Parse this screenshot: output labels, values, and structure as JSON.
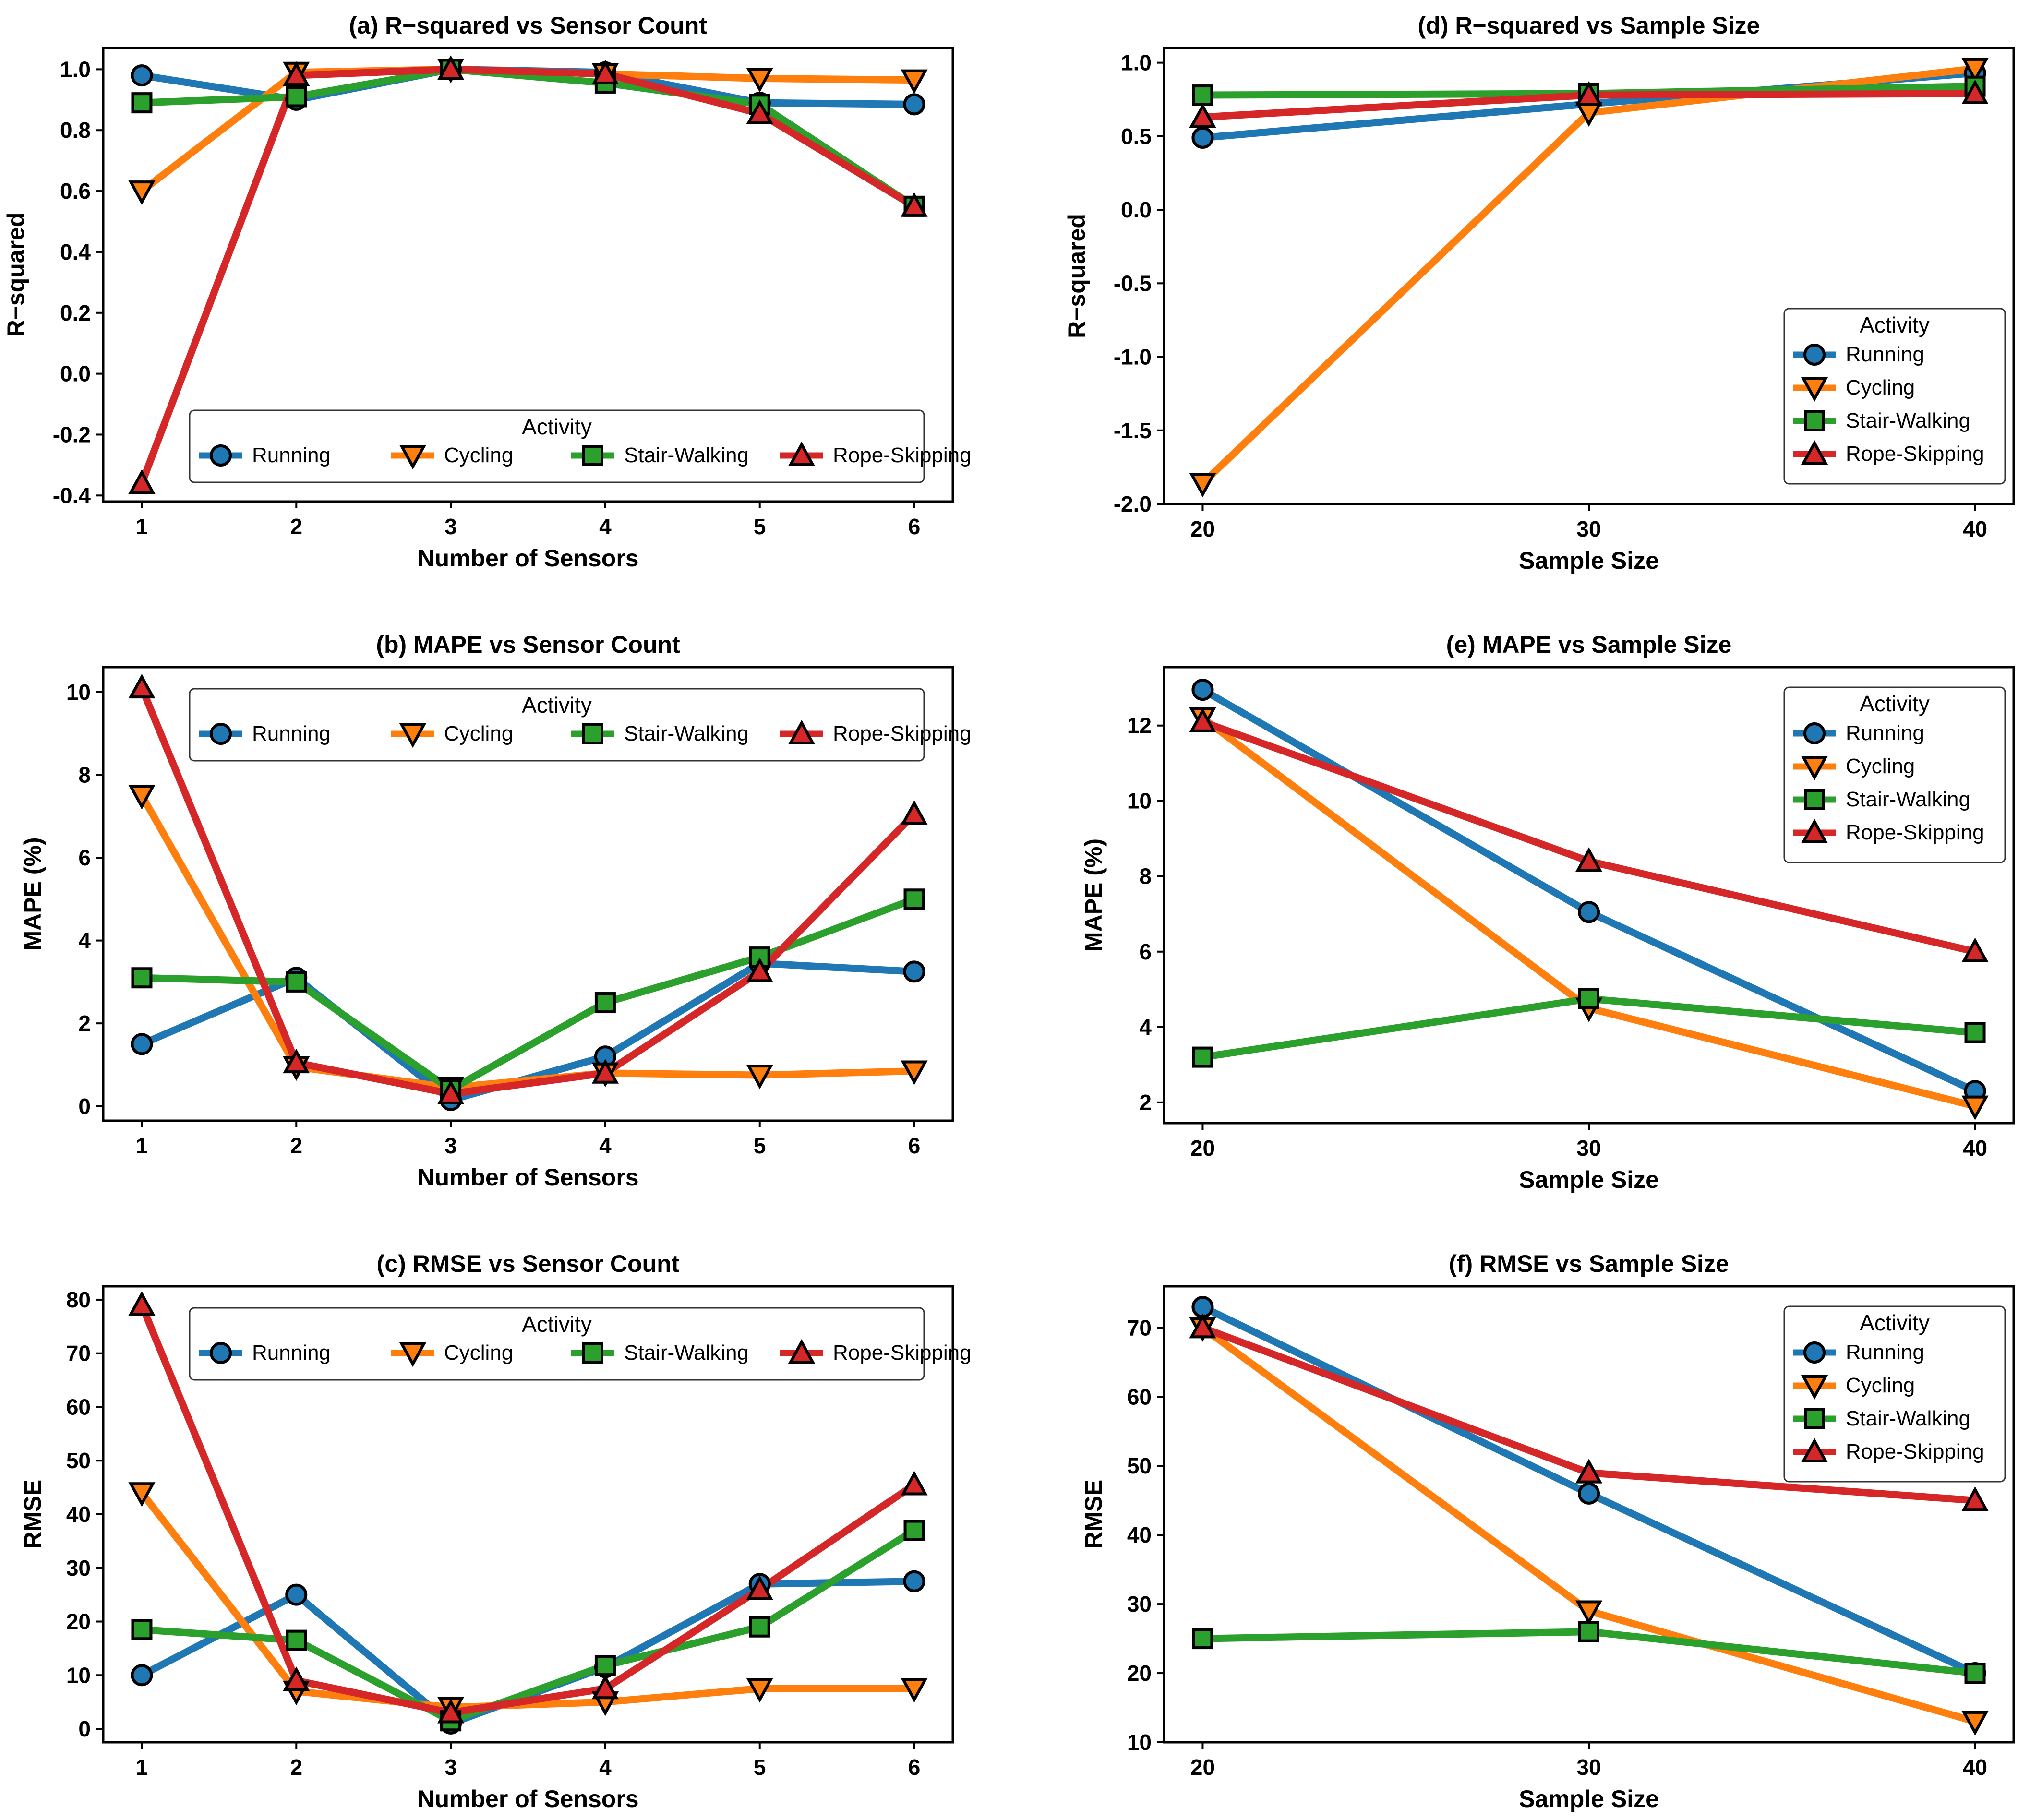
{
  "legend_title": "Activity",
  "colors": {
    "Running": "#1f77b4",
    "Cycling": "#ff7f0e",
    "Stair-Walking": "#2ca02c",
    "Rope-Skipping": "#d62728"
  },
  "chart_data": [
    {
      "id": "a",
      "type": "line",
      "title": "(a) R−squared vs Sensor Count",
      "xlabel": "Number of Sensors",
      "ylabel": "R−squared",
      "x": [
        1,
        2,
        3,
        4,
        5,
        6
      ],
      "xlim": [
        0.75,
        6.25
      ],
      "ylim": [
        -0.42,
        1.07
      ],
      "yticks": [
        -0.4,
        -0.2,
        0.0,
        0.2,
        0.4,
        0.6,
        0.8,
        1.0
      ],
      "ytick_labels": [
        "-0.4",
        "-0.2",
        "0.0",
        "0.2",
        "0.4",
        "0.6",
        "0.8",
        "1.0"
      ],
      "legend": "lower-center-horizontal",
      "series": [
        {
          "name": "Running",
          "marker": "circle",
          "values": [
            0.98,
            0.9,
            1.0,
            0.99,
            0.89,
            0.885
          ]
        },
        {
          "name": "Cycling",
          "marker": "triangle-down",
          "values": [
            0.6,
            0.99,
            1.0,
            0.985,
            0.97,
            0.965
          ]
        },
        {
          "name": "Stair-Walking",
          "marker": "square",
          "values": [
            0.89,
            0.91,
            1.0,
            0.955,
            0.885,
            0.55
          ]
        },
        {
          "name": "Rope-Skipping",
          "marker": "triangle-up",
          "values": [
            -0.36,
            0.98,
            1.0,
            0.985,
            0.855,
            0.55
          ]
        }
      ]
    },
    {
      "id": "b",
      "type": "line",
      "title": "(b) MAPE vs Sensor Count",
      "xlabel": "Number of Sensors",
      "ylabel": "MAPE (%)",
      "x": [
        1,
        2,
        3,
        4,
        5,
        6
      ],
      "xlim": [
        0.75,
        6.25
      ],
      "ylim": [
        -0.35,
        10.6
      ],
      "yticks": [
        0,
        2,
        4,
        6,
        8,
        10
      ],
      "ytick_labels": [
        "0",
        "2",
        "4",
        "6",
        "8",
        "10"
      ],
      "legend": "upper-center-horizontal",
      "series": [
        {
          "name": "Running",
          "marker": "circle",
          "values": [
            1.5,
            3.1,
            0.15,
            1.2,
            3.45,
            3.25
          ]
        },
        {
          "name": "Cycling",
          "marker": "triangle-down",
          "values": [
            7.5,
            0.95,
            0.45,
            0.8,
            0.75,
            0.85
          ]
        },
        {
          "name": "Stair-Walking",
          "marker": "square",
          "values": [
            3.1,
            3.0,
            0.4,
            2.5,
            3.6,
            5.0
          ]
        },
        {
          "name": "Rope-Skipping",
          "marker": "triangle-up",
          "values": [
            10.1,
            1.05,
            0.3,
            0.8,
            3.25,
            7.05
          ]
        }
      ]
    },
    {
      "id": "c",
      "type": "line",
      "title": "(c) RMSE vs Sensor Count",
      "xlabel": "Number of Sensors",
      "ylabel": "RMSE",
      "x": [
        1,
        2,
        3,
        4,
        5,
        6
      ],
      "xlim": [
        0.75,
        6.25
      ],
      "ylim": [
        -2.5,
        82.5
      ],
      "yticks": [
        0,
        10,
        20,
        30,
        40,
        50,
        60,
        70,
        80
      ],
      "ytick_labels": [
        "0",
        "10",
        "20",
        "30",
        "40",
        "50",
        "60",
        "70",
        "80"
      ],
      "legend": "upper-center-horizontal",
      "series": [
        {
          "name": "Running",
          "marker": "circle",
          "values": [
            10.0,
            25.0,
            1.0,
            11.5,
            27.0,
            27.5
          ]
        },
        {
          "name": "Cycling",
          "marker": "triangle-down",
          "values": [
            44.0,
            7.0,
            4.0,
            5.0,
            7.5,
            7.5
          ]
        },
        {
          "name": "Stair-Walking",
          "marker": "square",
          "values": [
            18.5,
            16.5,
            1.5,
            11.8,
            19.0,
            37.0
          ]
        },
        {
          "name": "Rope-Skipping",
          "marker": "triangle-up",
          "values": [
            79.0,
            9.0,
            3.0,
            7.5,
            26.0,
            45.5
          ]
        }
      ]
    },
    {
      "id": "d",
      "type": "line",
      "title": "(d) R−squared vs Sample Size",
      "xlabel": "Sample Size",
      "ylabel": "R−squared",
      "x": [
        20,
        30,
        40
      ],
      "xlim": [
        19.0,
        41.0
      ],
      "ylim": [
        -2.0,
        1.1
      ],
      "yticks": [
        -2.0,
        -1.5,
        -1.0,
        -0.5,
        0.0,
        0.5,
        1.0
      ],
      "ytick_labels": [
        "-2.0",
        "-1.5",
        "-1.0",
        "-0.5",
        "0.0",
        "0.5",
        "1.0"
      ],
      "legend": "lower-right",
      "series": [
        {
          "name": "Running",
          "marker": "circle",
          "values": [
            0.49,
            0.72,
            0.93
          ]
        },
        {
          "name": "Cycling",
          "marker": "triangle-down",
          "values": [
            -1.86,
            0.66,
            0.96
          ]
        },
        {
          "name": "Stair-Walking",
          "marker": "square",
          "values": [
            0.78,
            0.79,
            0.84
          ]
        },
        {
          "name": "Rope-Skipping",
          "marker": "triangle-up",
          "values": [
            0.63,
            0.78,
            0.79
          ]
        }
      ]
    },
    {
      "id": "e",
      "type": "line",
      "title": "(e) MAPE vs Sample Size",
      "xlabel": "Sample Size",
      "ylabel": "MAPE (%)",
      "x": [
        20,
        30,
        40
      ],
      "xlim": [
        19.0,
        41.0
      ],
      "ylim": [
        1.45,
        13.55
      ],
      "yticks": [
        2,
        4,
        6,
        8,
        10,
        12
      ],
      "ytick_labels": [
        "2",
        "4",
        "6",
        "8",
        "10",
        "12"
      ],
      "legend": "upper-right",
      "series": [
        {
          "name": "Running",
          "marker": "circle",
          "values": [
            12.95,
            7.05,
            2.3
          ]
        },
        {
          "name": "Cycling",
          "marker": "triangle-down",
          "values": [
            12.2,
            4.5,
            1.9
          ]
        },
        {
          "name": "Stair-Walking",
          "marker": "square",
          "values": [
            3.2,
            4.75,
            3.85
          ]
        },
        {
          "name": "Rope-Skipping",
          "marker": "triangle-up",
          "values": [
            12.1,
            8.4,
            6.0
          ]
        }
      ]
    },
    {
      "id": "f",
      "type": "line",
      "title": "(f) RMSE vs Sample Size",
      "xlabel": "Sample Size",
      "ylabel": "RMSE",
      "x": [
        20,
        30,
        40
      ],
      "xlim": [
        19.0,
        41.0
      ],
      "ylim": [
        10.0,
        76.0
      ],
      "yticks": [
        10,
        20,
        30,
        40,
        50,
        60,
        70
      ],
      "ytick_labels": [
        "10",
        "20",
        "30",
        "40",
        "50",
        "60",
        "70"
      ],
      "legend": "upper-right",
      "series": [
        {
          "name": "Running",
          "marker": "circle",
          "values": [
            73.0,
            46.0,
            20.0
          ]
        },
        {
          "name": "Cycling",
          "marker": "triangle-down",
          "values": [
            70.0,
            29.0,
            13.0
          ]
        },
        {
          "name": "Stair-Walking",
          "marker": "square",
          "values": [
            25.0,
            26.0,
            20.0
          ]
        },
        {
          "name": "Rope-Skipping",
          "marker": "triangle-up",
          "values": [
            70.0,
            49.0,
            45.0
          ]
        }
      ]
    }
  ]
}
